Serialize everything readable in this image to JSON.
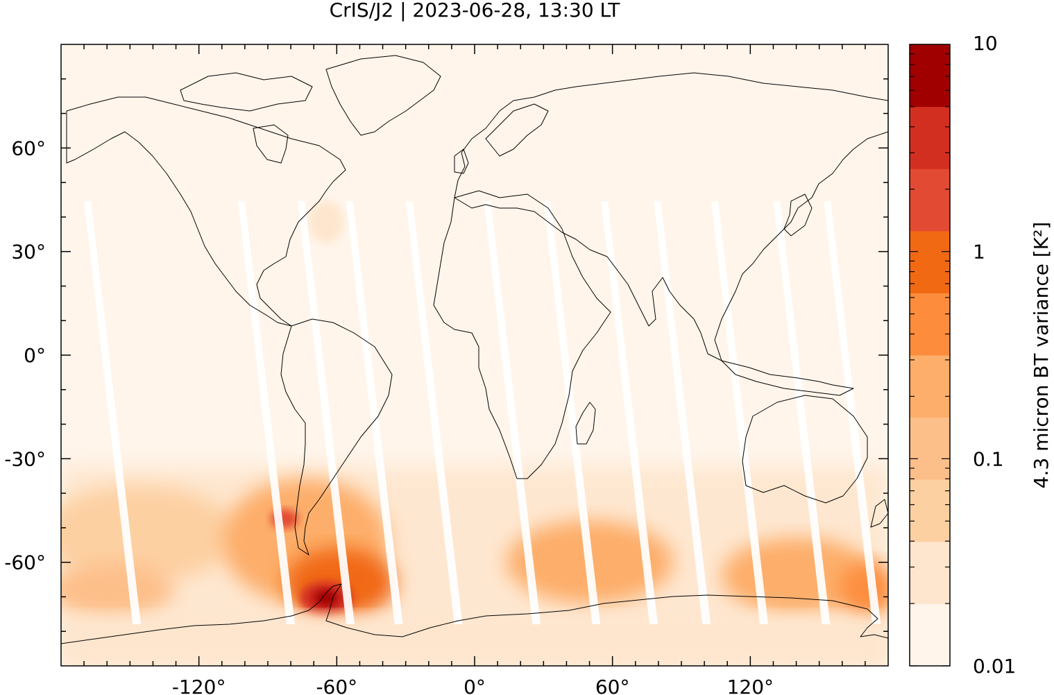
{
  "title": "CrIS/J2 | 2023-06-28, 13:30 LT",
  "map": {
    "projection": "plate carree",
    "lon_range": [
      -180,
      180
    ],
    "lat_range": [
      -90,
      90
    ],
    "x_ticks": [
      {
        "value": -120,
        "label": "-120°"
      },
      {
        "value": -60,
        "label": "-60°"
      },
      {
        "value": 0,
        "label": "0°"
      },
      {
        "value": 60,
        "label": "60°"
      },
      {
        "value": 120,
        "label": "120°"
      }
    ],
    "y_ticks": [
      {
        "value": 60,
        "label": "60°"
      },
      {
        "value": 30,
        "label": "30°"
      },
      {
        "value": 0,
        "label": "0°"
      },
      {
        "value": -30,
        "label": "-30°"
      },
      {
        "value": -60,
        "label": "-60°"
      }
    ],
    "coastline_color": "#000000",
    "background_color": "#fff5eb",
    "swath_gap_color": "#ffffff"
  },
  "colorbar": {
    "label": "4.3 micron BT variance [K²]",
    "scale": "log",
    "range": [
      0.01,
      10
    ],
    "ticks": [
      {
        "value": 10,
        "label": "10"
      },
      {
        "value": 1,
        "label": "1"
      },
      {
        "value": 0.1,
        "label": "0.1"
      },
      {
        "value": 0.01,
        "label": "0.01"
      }
    ],
    "colors": [
      "#fff5eb",
      "#fee6ce",
      "#fdd0a2",
      "#fdbf8a",
      "#fdae6b",
      "#fd8d3c",
      "#f16913",
      "#e34a33",
      "#d32f20",
      "#a00000"
    ]
  }
}
